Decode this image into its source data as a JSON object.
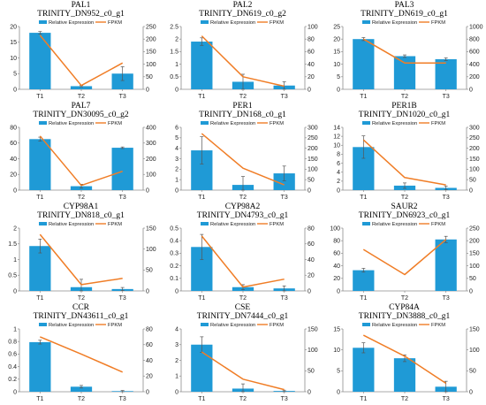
{
  "legend": {
    "bar": "Relative Expression",
    "line": "FPKM"
  },
  "colors": {
    "bar": "#1f9ad6",
    "line": "#f07d26",
    "axis": "#8c8c8c",
    "error": "#555555"
  },
  "chart_data": [
    {
      "type": "bar",
      "gene": "PAL1",
      "contig": "TRINITY_DN952_c0_g1",
      "categories": [
        "T1",
        "T2",
        "T3"
      ],
      "series": [
        {
          "name": "Relative Expression",
          "axis": "left",
          "values": [
            18,
            1,
            5
          ],
          "errors": [
            0.4,
            0.2,
            2.2
          ]
        },
        {
          "name": "FPKM",
          "axis": "right",
          "type": "line",
          "values": [
            215,
            15,
            105
          ]
        }
      ],
      "ylim": [
        0,
        20
      ],
      "yticks": [
        0,
        5,
        10,
        15,
        20
      ],
      "y2lim": [
        0,
        250
      ],
      "y2ticks": [
        0,
        50,
        100,
        150,
        200,
        250
      ]
    },
    {
      "type": "bar",
      "gene": "PAL2",
      "contig": "TRINITY_DN619_c0_g2",
      "categories": [
        "T1",
        "T2",
        "T3"
      ],
      "series": [
        {
          "name": "Relative Expression",
          "axis": "left",
          "values": [
            1.9,
            0.3,
            0.15
          ],
          "errors": [
            0.15,
            0.3,
            0.15
          ]
        },
        {
          "name": "FPKM",
          "axis": "right",
          "type": "line",
          "values": [
            85,
            20,
            5
          ]
        }
      ],
      "ylim": [
        0,
        2.5
      ],
      "yticks": [
        0,
        0.5,
        1,
        1.5,
        2,
        2.5
      ],
      "y2lim": [
        0,
        100
      ],
      "y2ticks": [
        0,
        20,
        40,
        60,
        80,
        100
      ]
    },
    {
      "type": "bar",
      "gene": "PAL3",
      "contig": "TRINITY_DN619_c0_g1",
      "categories": [
        "T1",
        "T2",
        "T3"
      ],
      "series": [
        {
          "name": "Relative Expression",
          "axis": "left",
          "values": [
            20,
            13.2,
            12
          ],
          "errors": [
            0.6,
            0.5,
            0.5
          ]
        },
        {
          "name": "FPKM",
          "axis": "right",
          "type": "line",
          "values": [
            800,
            420,
            420
          ]
        }
      ],
      "ylim": [
        0,
        25
      ],
      "yticks": [
        0,
        5,
        10,
        15,
        20,
        25
      ],
      "y2lim": [
        0,
        1000
      ],
      "y2ticks": [
        0,
        200,
        400,
        600,
        800,
        1000
      ]
    },
    {
      "type": "bar",
      "gene": "PAL7",
      "contig": "TRINITY_DN30095_c0_g2",
      "categories": [
        "T1",
        "T2",
        "T3"
      ],
      "series": [
        {
          "name": "Relative Expression",
          "axis": "left",
          "values": [
            65,
            5,
            54
          ],
          "errors": [
            2.5,
            2.5,
            1
          ]
        },
        {
          "name": "FPKM",
          "axis": "right",
          "type": "line",
          "values": [
            345,
            30,
            120
          ]
        }
      ],
      "ylim": [
        0,
        80
      ],
      "yticks": [
        0,
        20,
        40,
        60,
        80
      ],
      "y2lim": [
        0,
        400
      ],
      "y2ticks": [
        0,
        100,
        200,
        300,
        400
      ]
    },
    {
      "type": "bar",
      "gene": "PER1",
      "contig": "TRINITY_DN168_c0_g1",
      "categories": [
        "T1",
        "T2",
        "T3"
      ],
      "series": [
        {
          "name": "Relative Expression",
          "axis": "left",
          "values": [
            3.8,
            0.5,
            1.6
          ],
          "errors": [
            1.3,
            0.8,
            0.7
          ]
        },
        {
          "name": "FPKM",
          "axis": "right",
          "type": "line",
          "values": [
            270,
            105,
            25
          ]
        }
      ],
      "ylim": [
        0,
        6
      ],
      "yticks": [
        0,
        1,
        2,
        3,
        4,
        5,
        6
      ],
      "y2lim": [
        0,
        300
      ],
      "y2ticks": [
        0,
        50,
        100,
        150,
        200,
        250,
        300
      ]
    },
    {
      "type": "bar",
      "gene": "PER1B",
      "contig": "TRINITY_DN1020_c0_g1",
      "categories": [
        "T1",
        "T2",
        "T3"
      ],
      "series": [
        {
          "name": "Relative Expression",
          "axis": "left",
          "values": [
            9.6,
            1,
            0.5
          ],
          "errors": [
            2.5,
            0.6,
            0.4
          ]
        },
        {
          "name": "FPKM",
          "axis": "right",
          "type": "line",
          "values": [
            240,
            60,
            25
          ]
        }
      ],
      "ylim": [
        0,
        14
      ],
      "yticks": [
        0,
        2,
        4,
        6,
        8,
        10,
        12,
        14
      ],
      "y2lim": [
        0,
        300
      ],
      "y2ticks": [
        0,
        50,
        100,
        150,
        200,
        250,
        300
      ]
    },
    {
      "type": "bar",
      "gene": "CYP98A1",
      "contig": "TRINITY_DN818_c0_g1",
      "categories": [
        "T1",
        "T2",
        "T3"
      ],
      "series": [
        {
          "name": "Relative Expression",
          "axis": "left",
          "values": [
            1.43,
            0.12,
            0.06
          ],
          "errors": [
            0.22,
            0.25,
            0.05
          ]
        },
        {
          "name": "FPKM",
          "axis": "right",
          "type": "line",
          "values": [
            135,
            15,
            30
          ]
        }
      ],
      "ylim": [
        0,
        2
      ],
      "yticks": [
        0,
        0.5,
        1,
        1.5,
        2
      ],
      "y2lim": [
        0,
        150
      ],
      "y2ticks": [
        0,
        50,
        100,
        150
      ]
    },
    {
      "type": "bar",
      "gene": "CYP98A2",
      "contig": "TRINITY_DN4793_c0_g1",
      "categories": [
        "T1",
        "T2",
        "T3"
      ],
      "series": [
        {
          "name": "Relative Expression",
          "axis": "left",
          "values": [
            0.35,
            0.03,
            0.02
          ],
          "errors": [
            0.1,
            0.02,
            0.02
          ]
        },
        {
          "name": "FPKM",
          "axis": "right",
          "type": "line",
          "values": [
            70,
            5,
            15
          ]
        }
      ],
      "ylim": [
        0,
        0.5
      ],
      "yticks": [
        0,
        0.1,
        0.2,
        0.3,
        0.4,
        0.5
      ],
      "y2lim": [
        0,
        80
      ],
      "y2ticks": [
        0,
        20,
        40,
        60,
        80
      ]
    },
    {
      "type": "bar",
      "gene": "SAUR2",
      "contig": "TRINITY_DN6923_c0_g1",
      "categories": [
        "T1",
        "T2",
        "T3"
      ],
      "series": [
        {
          "name": "Relative Expression",
          "axis": "left",
          "values": [
            33,
            0,
            82
          ],
          "errors": [
            3,
            0,
            5
          ]
        },
        {
          "name": "FPKM",
          "axis": "right",
          "type": "line",
          "values": [
            165,
            65,
            205
          ]
        }
      ],
      "ylim": [
        0,
        100
      ],
      "yticks": [
        0,
        20,
        40,
        60,
        80,
        100
      ],
      "y2lim": [
        0,
        250
      ],
      "y2ticks": [
        0,
        50,
        100,
        150,
        200,
        250
      ]
    },
    {
      "type": "bar",
      "gene": "CCR",
      "contig": "TRINITY_DN43611_c0_g1",
      "categories": [
        "T1",
        "T2",
        "T3"
      ],
      "series": [
        {
          "name": "Relative Expression",
          "axis": "left",
          "values": [
            0.79,
            0.08,
            0.01
          ],
          "errors": [
            0.03,
            0.02,
            0.01
          ]
        },
        {
          "name": "FPKM",
          "axis": "right",
          "type": "line",
          "values": [
            70,
            48,
            25
          ]
        }
      ],
      "ylim": [
        0,
        1
      ],
      "yticks": [
        0,
        0.2,
        0.4,
        0.6,
        0.8,
        1
      ],
      "y2lim": [
        0,
        80
      ],
      "y2ticks": [
        0,
        20,
        40,
        60,
        80
      ]
    },
    {
      "type": "bar",
      "gene": "CSE",
      "contig": "TRINITY_DN7444_c0_g1",
      "categories": [
        "T1",
        "T2",
        "T3"
      ],
      "series": [
        {
          "name": "Relative Expression",
          "axis": "left",
          "values": [
            3,
            0.2,
            0.05
          ],
          "errors": [
            0.5,
            0.3,
            0.05
          ]
        },
        {
          "name": "FPKM",
          "axis": "right",
          "type": "line",
          "values": [
            95,
            30,
            5
          ]
        }
      ],
      "ylim": [
        0,
        4
      ],
      "yticks": [
        0,
        1,
        2,
        3,
        4
      ],
      "y2lim": [
        0,
        150
      ],
      "y2ticks": [
        0,
        50,
        100,
        150
      ]
    },
    {
      "type": "bar",
      "gene": "CYP84A",
      "contig": "TRINITY_DN3888_c0_g1",
      "categories": [
        "T1",
        "T2",
        "T3"
      ],
      "series": [
        {
          "name": "Relative Expression",
          "axis": "left",
          "values": [
            10.5,
            8,
            1.2
          ],
          "errors": [
            1.2,
            0.8,
            1.3
          ]
        },
        {
          "name": "FPKM",
          "axis": "right",
          "type": "line",
          "values": [
            135,
            85,
            20
          ]
        }
      ],
      "ylim": [
        0,
        15
      ],
      "yticks": [
        0,
        5,
        10,
        15
      ],
      "y2lim": [
        0,
        150
      ],
      "y2ticks": [
        0,
        50,
        100,
        150
      ]
    }
  ]
}
